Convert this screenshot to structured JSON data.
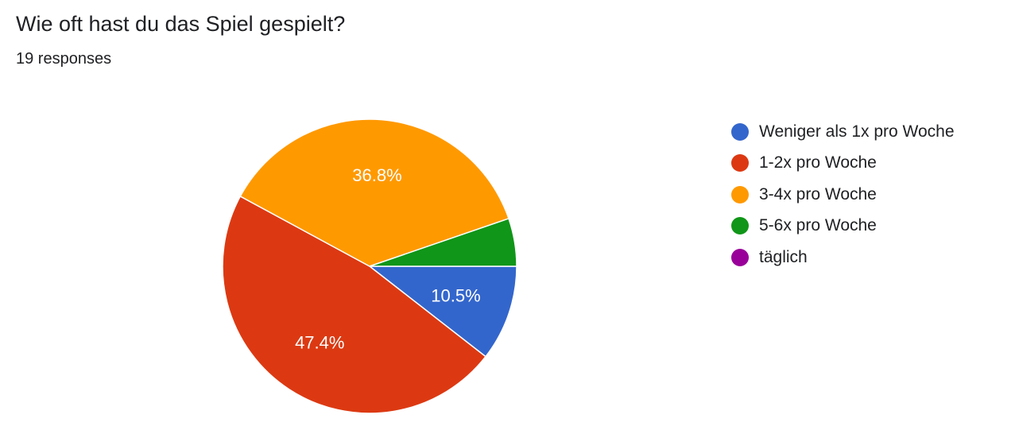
{
  "chart_data": {
    "type": "pie",
    "title": "Wie oft hast du das Spiel gespielt?",
    "subtitle": "19 responses",
    "legend_position": "right",
    "start_angle": "3 o'clock, clockwise",
    "slices": [
      {
        "label": "Weniger als 1x pro Woche",
        "count": 2,
        "percent": 10.5,
        "percent_label": "10.5%",
        "color": "#3366cc",
        "show_label": true
      },
      {
        "label": "1-2x pro Woche",
        "count": 9,
        "percent": 47.4,
        "percent_label": "47.4%",
        "color": "#dc3912",
        "show_label": true
      },
      {
        "label": "3-4x pro Woche",
        "count": 7,
        "percent": 36.8,
        "percent_label": "36.8%",
        "color": "#ff9900",
        "show_label": true
      },
      {
        "label": "5-6x pro Woche",
        "count": 1,
        "percent": 5.3,
        "percent_label": "",
        "color": "#109618",
        "show_label": false
      },
      {
        "label": "täglich",
        "count": 0,
        "percent": 0,
        "percent_label": "",
        "color": "#990099",
        "show_label": false
      }
    ]
  }
}
